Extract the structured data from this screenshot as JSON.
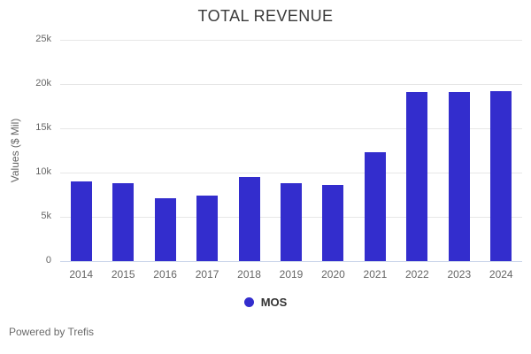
{
  "chart_data": {
    "type": "bar",
    "title": "TOTAL REVENUE",
    "ylabel": "Values ($ Mil)",
    "xlabel": "",
    "categories": [
      "2014",
      "2015",
      "2016",
      "2017",
      "2018",
      "2019",
      "2020",
      "2021",
      "2022",
      "2023",
      "2024"
    ],
    "series": [
      {
        "name": "MOS",
        "values": [
          9000,
          8800,
          7100,
          7400,
          9500,
          8800,
          8600,
          12300,
          19100,
          19100,
          19200
        ]
      }
    ],
    "ylim": [
      0,
      25000
    ],
    "yticks": [
      0,
      5000,
      10000,
      15000,
      20000,
      25000
    ],
    "ytick_labels": [
      "0",
      "5k",
      "10k",
      "15k",
      "20k",
      "25k"
    ],
    "grid": true,
    "legend_position": "bottom"
  },
  "legend": {
    "items": [
      {
        "label": "MOS",
        "color": "#332dcd"
      }
    ]
  },
  "footer": {
    "text": "Powered by Trefis"
  },
  "colors": {
    "bar": "#332dcd",
    "grid_line": "#e6e6e6",
    "axis_line": "#ccd6eb",
    "title_text": "#3a3a3a",
    "tick_text": "#666666",
    "legend_text": "#333333",
    "footer_text": "#6b6b6b",
    "background": "#ffffff"
  }
}
